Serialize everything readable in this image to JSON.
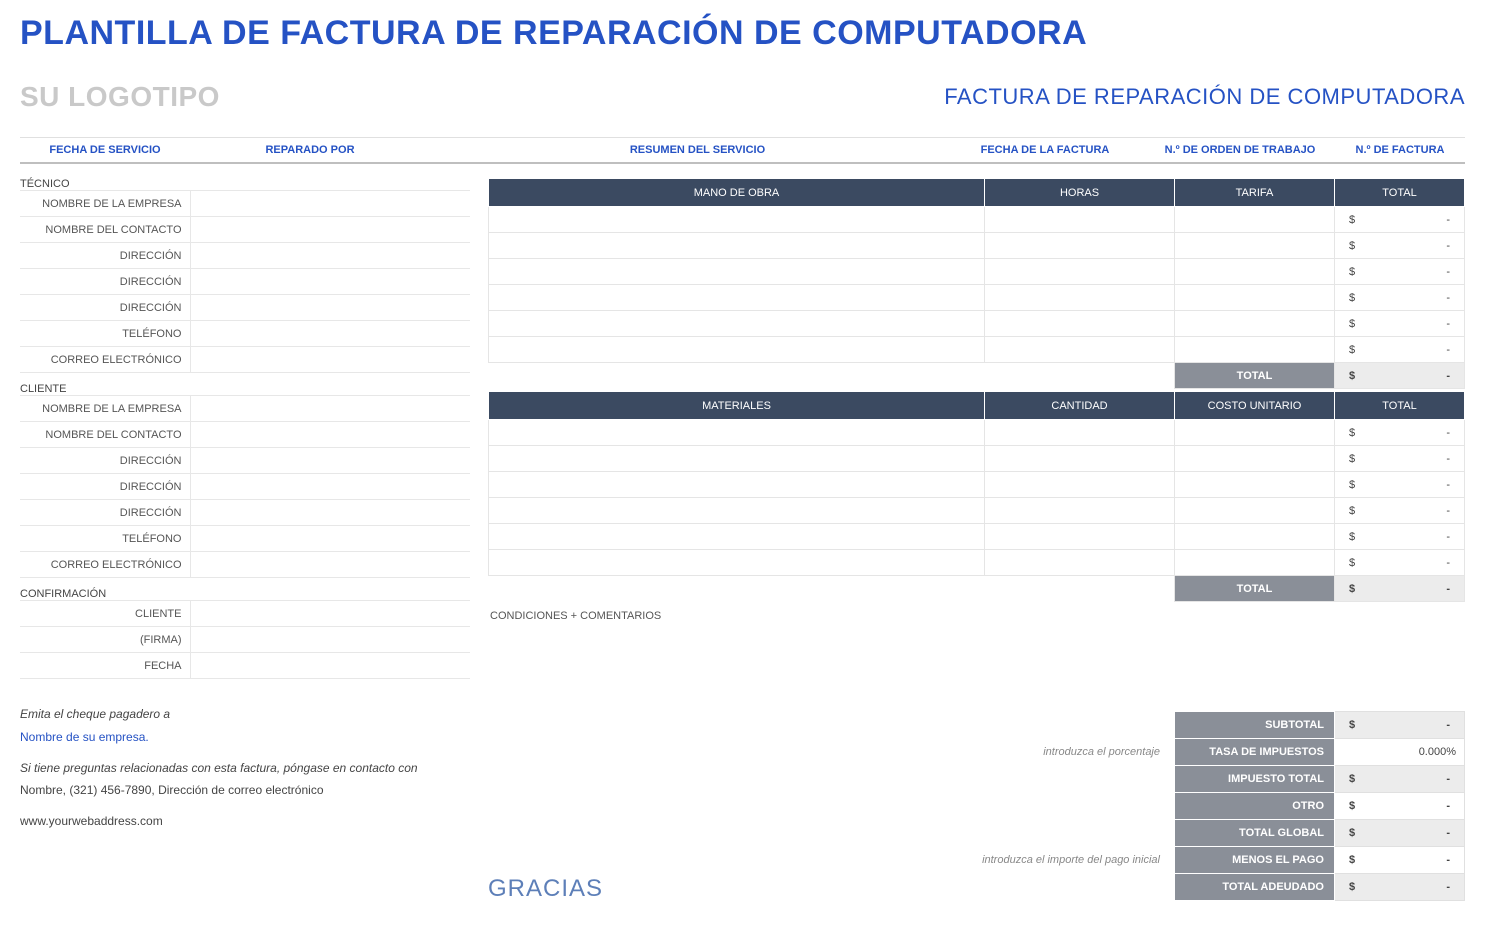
{
  "title": "PLANTILLA DE FACTURA DE REPARACIÓN DE COMPUTADORA",
  "logo_text": "SU LOGOTIPO",
  "subtitle": "FACTURA DE REPARACIÓN DE COMPUTADORA",
  "info_bar": {
    "c1": "FECHA DE SERVICIO",
    "c2": "REPARADO POR",
    "c3": "RESUMEN DEL SERVICIO",
    "c4": "FECHA DE LA FACTURA",
    "c5": "N.º DE ORDEN DE TRABAJO",
    "c6": "N.º DE FACTURA"
  },
  "sections": {
    "tecnico": "TÉCNICO",
    "cliente": "CLIENTE",
    "confirmacion": "CONFIRMACIÓN"
  },
  "tecnico_rows": [
    "NOMBRE DE LA EMPRESA",
    "NOMBRE DEL CONTACTO",
    "DIRECCIÓN",
    "DIRECCIÓN",
    "DIRECCIÓN",
    "TELÉFONO",
    "CORREO ELECTRÓNICO"
  ],
  "cliente_rows": [
    "NOMBRE DE LA EMPRESA",
    "NOMBRE DEL CONTACTO",
    "DIRECCIÓN",
    "DIRECCIÓN",
    "DIRECCIÓN",
    "TELÉFONO",
    "CORREO ELECTRÓNICO"
  ],
  "confirm_rows": [
    "CLIENTE",
    "(FIRMA)",
    "FECHA"
  ],
  "labor": {
    "headers": [
      "MANO DE OBRA",
      "HORAS",
      "TARIFA",
      "TOTAL"
    ],
    "rows": 6,
    "total_label": "TOTAL",
    "currency": "$",
    "dash": "-"
  },
  "materials": {
    "headers": [
      "MATERIALES",
      "CANTIDAD",
      "COSTO UNITARIO",
      "TOTAL"
    ],
    "rows": 6,
    "total_label": "TOTAL",
    "currency": "$",
    "dash": "-"
  },
  "conditions_label": "CONDICIONES + COMENTARIOS",
  "summary": {
    "hint_rate": "introduzca el porcentaje",
    "hint_pay": "introduzca el importe del pago inicial",
    "rows": [
      {
        "label": "SUBTOTAL",
        "cur": "$",
        "val": "-",
        "hint": ""
      },
      {
        "label": "TASA DE IMPUESTOS",
        "cur": "",
        "val": "0.000%",
        "hint": "introduzca el porcentaje",
        "plain": true
      },
      {
        "label": "IMPUESTO TOTAL",
        "cur": "$",
        "val": "-",
        "hint": ""
      },
      {
        "label": "OTRO",
        "cur": "$",
        "val": "-",
        "hint": "",
        "plainwhite": true
      },
      {
        "label": "TOTAL GLOBAL",
        "cur": "$",
        "val": "-",
        "hint": ""
      },
      {
        "label": "MENOS EL PAGO",
        "cur": "$",
        "val": "-",
        "hint": "introduzca el importe del pago inicial",
        "plainwhite": true
      },
      {
        "label": "TOTAL ADEUDADO",
        "cur": "$",
        "val": "-",
        "hint": ""
      }
    ]
  },
  "footer": {
    "l1": "Emita el cheque pagadero a",
    "l2": "Nombre de su empresa.",
    "l3": "Si tiene preguntas relacionadas con esta factura, póngase en contacto con",
    "l4": "Nombre, (321) 456-7890, Dirección de correo electrónico",
    "l5": "www.yourwebaddress.com"
  },
  "thanks": "GRACIAS",
  "colors": {
    "title": "#2552c4",
    "logo": "#c9c9c9",
    "header_bg": "#3b4a61",
    "sum_label_bg": "#8a8f98",
    "sum_val_bg": "#ececec",
    "border": "#e5e5e5"
  }
}
